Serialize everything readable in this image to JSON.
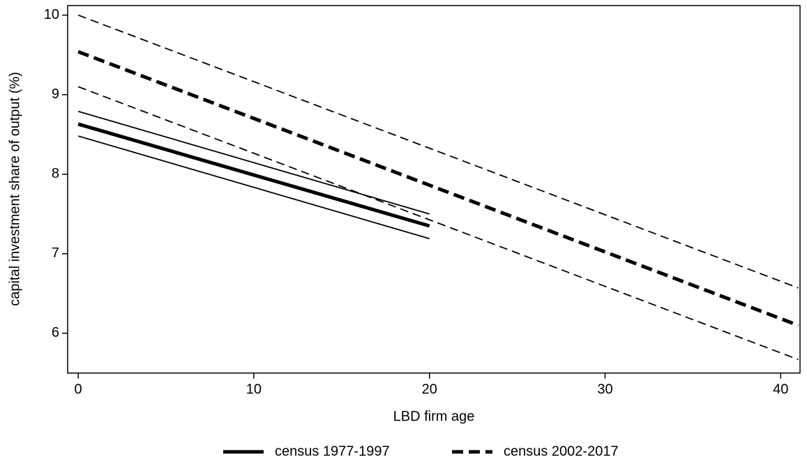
{
  "chart_data": {
    "type": "line",
    "x_label": "LBD firm age",
    "y_label": "capital investment share of output (%)",
    "xlim": [
      -0.6,
      41.1
    ],
    "ylim": [
      5.5,
      10.12
    ],
    "xticks": [
      0,
      10,
      20,
      30,
      40
    ],
    "yticks": [
      6,
      7,
      8,
      9,
      10
    ],
    "series": [
      {
        "name": "census 1977-1997",
        "color": "#000000",
        "dash": "solid",
        "x": [
          0,
          20
        ],
        "values": [
          8.63,
          7.35
        ],
        "lower": [
          8.48,
          7.19
        ],
        "upper": [
          8.79,
          7.5
        ]
      },
      {
        "name": "census 2002-2017",
        "color": "#000000",
        "dash": "dashed",
        "x": [
          0,
          41
        ],
        "values": [
          9.54,
          6.1
        ],
        "lower": [
          9.1,
          5.67
        ],
        "upper": [
          10.0,
          6.57
        ]
      }
    ]
  }
}
